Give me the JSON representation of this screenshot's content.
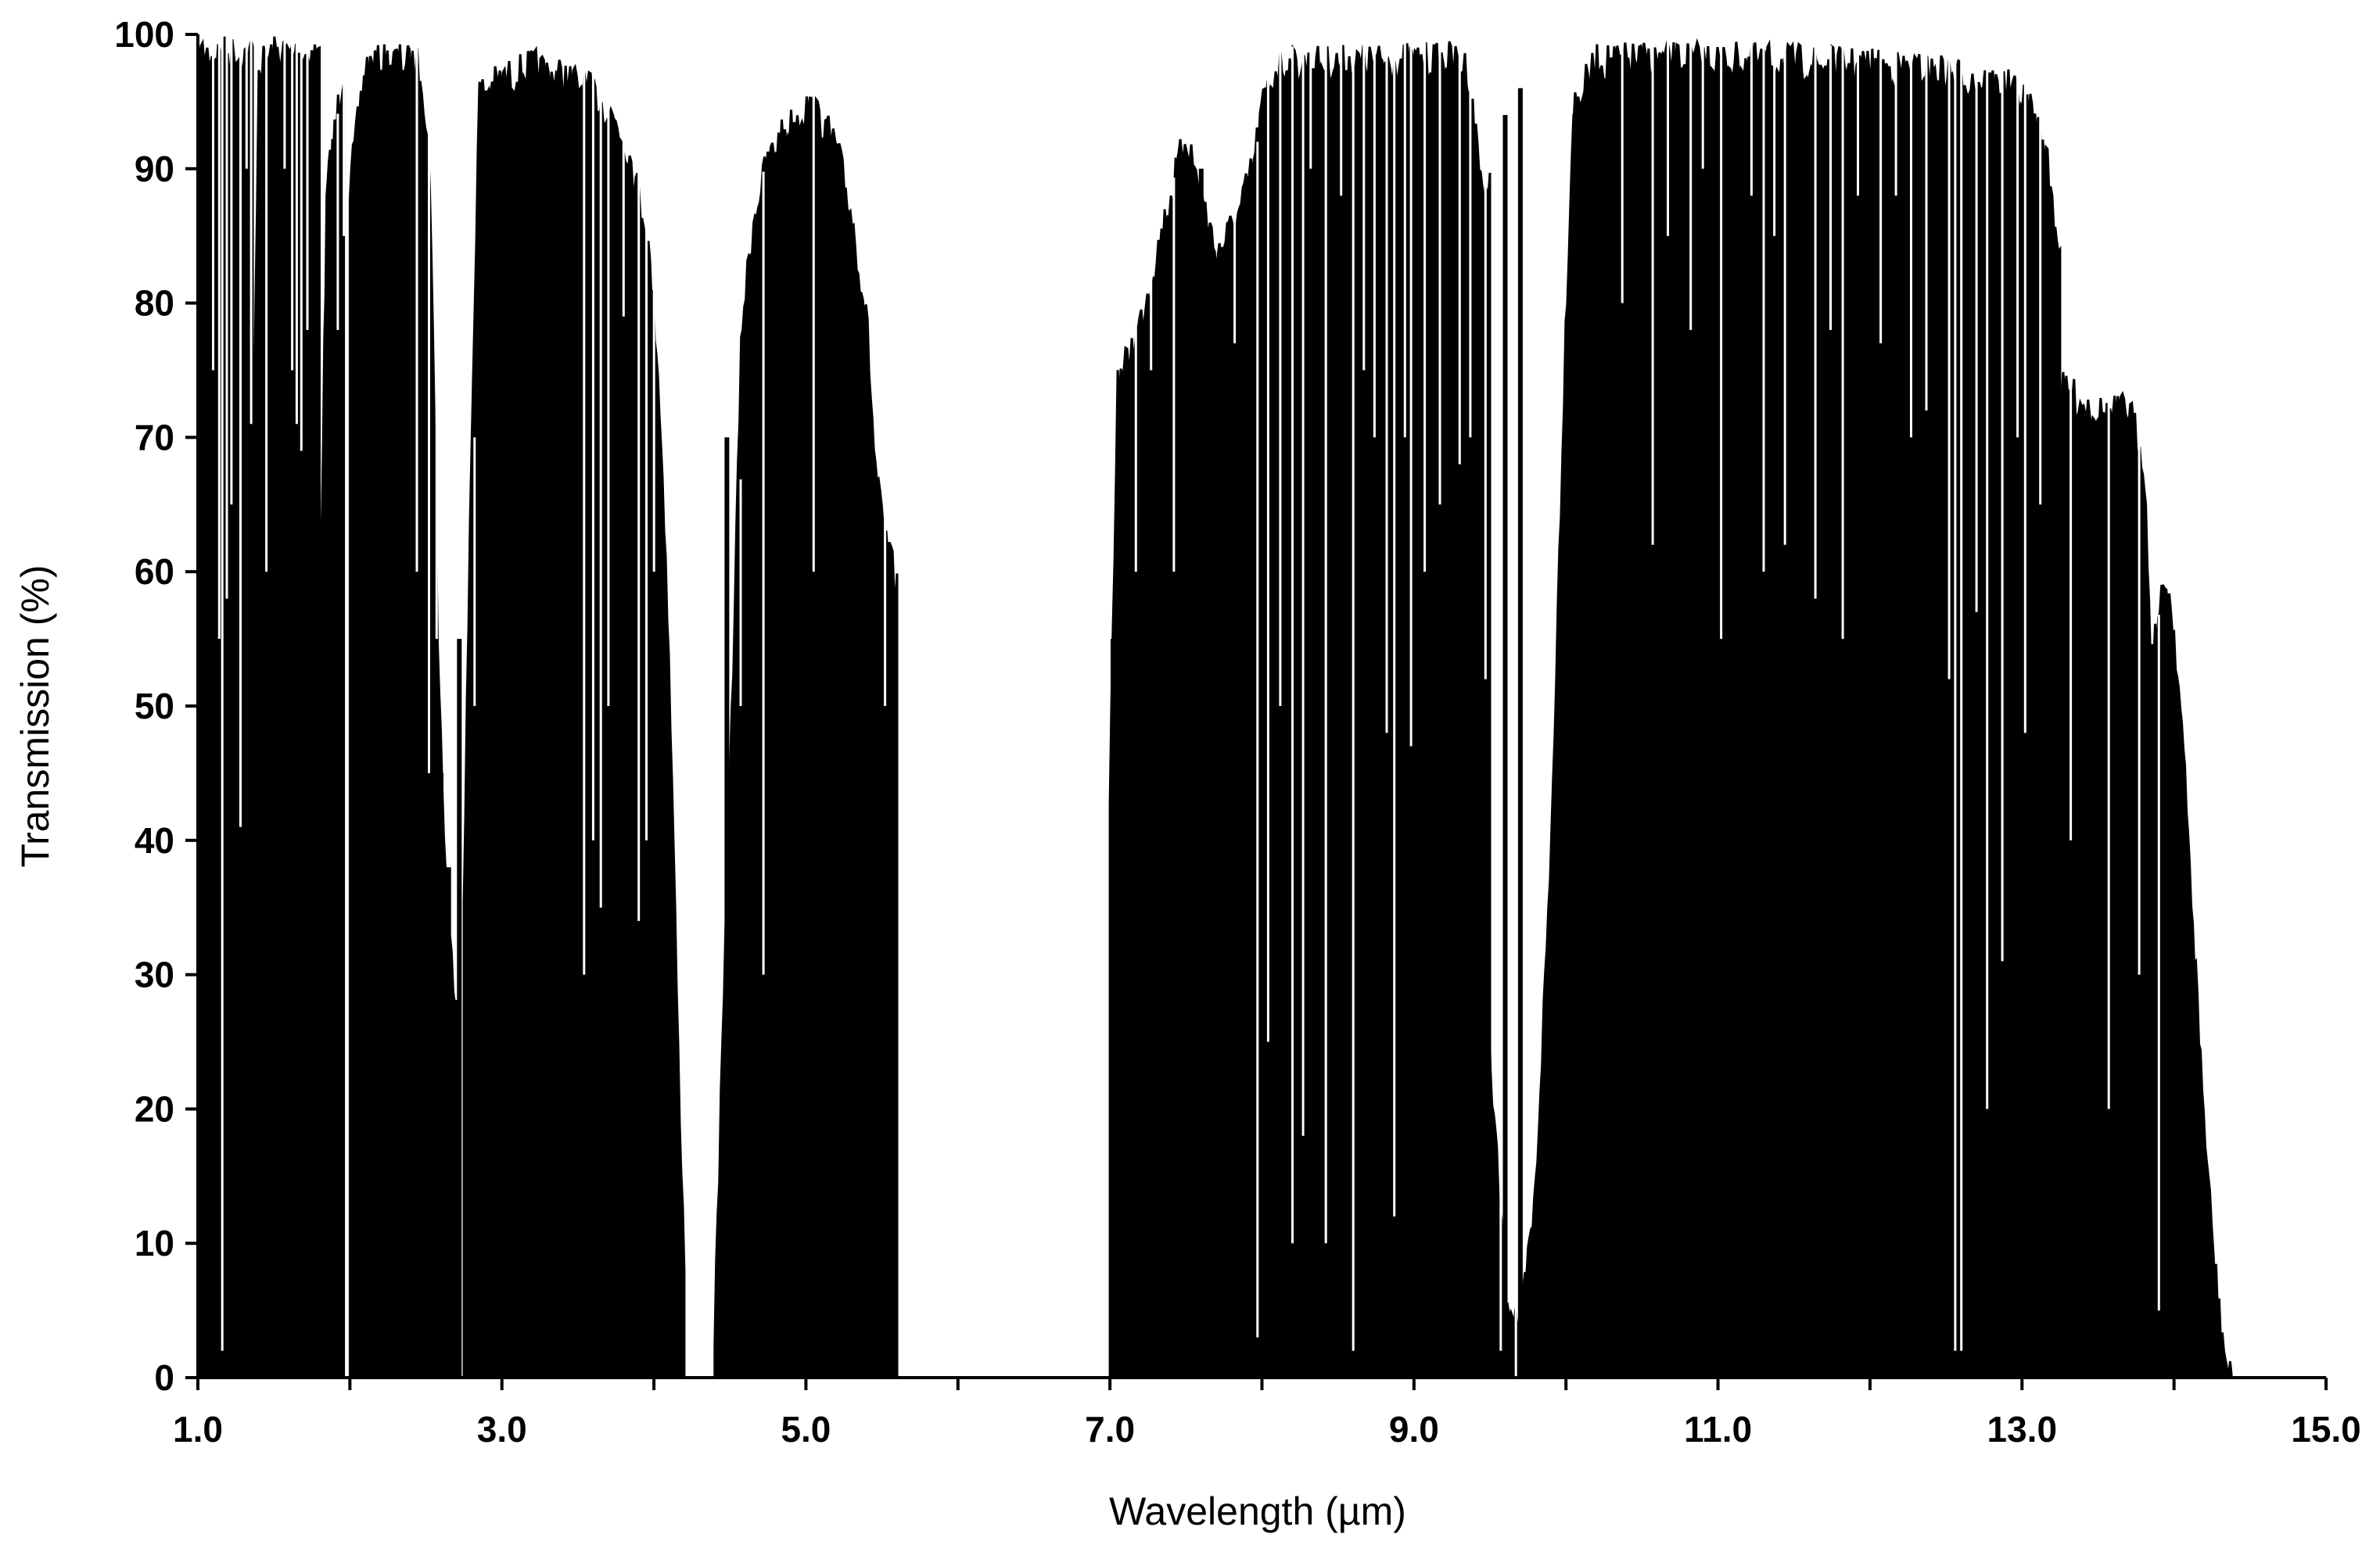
{
  "chart_data": {
    "type": "area",
    "title": "",
    "xlabel": "Wavelength (µm)",
    "ylabel": "Transmission (%)",
    "xlim": [
      1.0,
      15.0
    ],
    "ylim": [
      0,
      100
    ],
    "x_ticks": [
      1.0,
      2.0,
      3.0,
      4.0,
      5.0,
      6.0,
      7.0,
      8.0,
      9.0,
      10.0,
      11.0,
      12.0,
      13.0,
      14.0,
      15.0
    ],
    "x_tick_labels": [
      "1.0",
      "3.0",
      "5.0",
      "7.0",
      "9.0",
      "11.0",
      "13.0",
      "15.0"
    ],
    "x_tick_label_values": [
      1.0,
      3.0,
      5.0,
      7.0,
      9.0,
      11.0,
      13.0,
      15.0
    ],
    "y_ticks": [
      0,
      10,
      20,
      30,
      40,
      50,
      60,
      70,
      80,
      90,
      100
    ],
    "y_tick_labels": [
      "0",
      "10",
      "20",
      "30",
      "40",
      "50",
      "60",
      "70",
      "80",
      "90",
      "100"
    ],
    "grid": false,
    "legend": "none",
    "series": [
      {
        "color": "#000000",
        "bands": [
          {
            "range": [
              1.0,
              1.36
            ],
            "envelope": [
              [
                1.0,
                100
              ],
              [
                1.05,
                100
              ],
              [
                1.36,
                100
              ]
            ],
            "dips": [
              [
                1.08,
                75
              ],
              [
                1.12,
                55
              ],
              [
                1.14,
                2
              ],
              [
                1.17,
                58
              ],
              [
                1.2,
                65
              ],
              [
                1.26,
                41
              ],
              [
                1.3,
                90
              ],
              [
                1.33,
                71
              ]
            ]
          },
          {
            "range": [
              1.37,
              1.8
            ],
            "envelope": [
              [
                1.37,
                72
              ],
              [
                1.4,
                99
              ],
              [
                1.5,
                100
              ],
              [
                1.8,
                100
              ]
            ],
            "dips": [
              [
                1.43,
                60
              ],
              [
                1.55,
                90
              ],
              [
                1.6,
                75
              ],
              [
                1.63,
                71
              ],
              [
                1.66,
                69
              ],
              [
                1.7,
                78
              ],
              [
                1.75,
                95
              ]
            ]
          },
          {
            "range": [
              1.81,
              1.96
            ],
            "envelope": [
              [
                1.81,
                62
              ],
              [
                1.85,
                90
              ],
              [
                1.96,
                99
              ]
            ],
            "dips": [
              [
                1.9,
                78
              ],
              [
                1.94,
                85
              ]
            ]
          },
          {
            "range": [
              2.0,
              2.7
            ],
            "envelope": [
              [
                2.0,
                90
              ],
              [
                2.1,
                99
              ],
              [
                2.3,
                99.5
              ],
              [
                2.47,
                99
              ],
              [
                2.53,
                90
              ],
              [
                2.58,
                55
              ],
              [
                2.64,
                35
              ],
              [
                2.7,
                30
              ]
            ],
            "dips": [
              [
                2.42,
                60
              ],
              [
                2.5,
                45
              ],
              [
                2.55,
                55
              ],
              [
                2.6,
                45
              ],
              [
                2.65,
                38
              ]
            ]
          },
          {
            "range": [
              2.75,
              3.45
            ],
            "envelope": [
              [
                2.75,
                38
              ],
              [
                2.8,
                70
              ],
              [
                2.85,
                97
              ],
              [
                3.0,
                98
              ],
              [
                3.2,
                99
              ],
              [
                3.45,
                98
              ]
            ],
            "dips": [
              [
                2.72,
                55
              ],
              [
                2.8,
                50
              ],
              [
                3.05,
                96
              ],
              [
                3.25,
                97
              ]
            ]
          },
          {
            "range": [
              3.45,
              4.2
            ],
            "envelope": [
              [
                3.45,
                98
              ],
              [
                3.6,
                97
              ],
              [
                3.75,
                95
              ],
              [
                3.85,
                92
              ],
              [
                3.95,
                87
              ],
              [
                4.02,
                78
              ],
              [
                4.08,
                62
              ],
              [
                4.12,
                45
              ],
              [
                4.16,
                25
              ],
              [
                4.2,
                10
              ]
            ],
            "dips": [
              [
                3.52,
                30
              ],
              [
                3.58,
                40
              ],
              [
                3.63,
                35
              ],
              [
                3.68,
                50
              ],
              [
                3.78,
                79
              ],
              [
                3.88,
                34
              ],
              [
                3.93,
                40
              ],
              [
                3.98,
                60
              ]
            ]
          },
          {
            "range": [
              4.4,
              5.6
            ],
            "envelope": [
              [
                4.4,
                5
              ],
              [
                4.5,
                45
              ],
              [
                4.58,
                80
              ],
              [
                4.66,
                88
              ],
              [
                4.75,
                92
              ],
              [
                4.85,
                94
              ],
              [
                5.0,
                96
              ],
              [
                5.1,
                95
              ],
              [
                5.2,
                93
              ],
              [
                5.3,
                88
              ],
              [
                5.4,
                80
              ],
              [
                5.45,
                70
              ],
              [
                5.5,
                65
              ],
              [
                5.6,
                60
              ]
            ],
            "dips": [
              [
                4.48,
                70
              ],
              [
                4.55,
                50
              ],
              [
                4.7,
                30
              ],
              [
                5.03,
                60
              ],
              [
                5.5,
                50
              ]
            ]
          },
          {
            "range": [
              7.0,
              9.5
            ],
            "envelope": [
              [
                7.0,
                45
              ],
              [
                7.05,
                75
              ],
              [
                7.2,
                80
              ],
              [
                7.35,
                87
              ],
              [
                7.5,
                94
              ],
              [
                7.7,
                85
              ],
              [
                7.85,
                88
              ],
              [
                7.95,
                92
              ],
              [
                8.0,
                96
              ],
              [
                8.1,
                99
              ],
              [
                8.3,
                99.2
              ],
              [
                8.6,
                99.3
              ],
              [
                8.9,
                99.4
              ],
              [
                9.25,
                99.5
              ],
              [
                9.35,
                99
              ],
              [
                9.45,
                90
              ]
            ],
            "dips": [
              [
                7.02,
                55
              ],
              [
                7.08,
                73
              ],
              [
                7.15,
                60
              ],
              [
                7.25,
                75
              ],
              [
                7.4,
                60
              ],
              [
                7.6,
                90
              ],
              [
                7.8,
                77
              ],
              [
                7.95,
                3
              ],
              [
                8.02,
                25
              ],
              [
                8.1,
                50
              ],
              [
                8.18,
                10
              ],
              [
                8.25,
                18
              ],
              [
                8.3,
                90
              ],
              [
                8.4,
                10
              ],
              [
                8.5,
                88
              ],
              [
                8.58,
                2
              ],
              [
                8.65,
                75
              ],
              [
                8.72,
                70
              ],
              [
                8.8,
                48
              ],
              [
                8.85,
                12
              ],
              [
                8.92,
                70
              ],
              [
                8.96,
                47
              ],
              [
                9.05,
                60
              ],
              [
                9.15,
                65
              ],
              [
                9.28,
                68
              ],
              [
                9.35,
                70
              ],
              [
                9.45,
                52
              ]
            ]
          },
          {
            "range": [
              9.4,
              10.05
            ],
            "envelope": [
              [
                9.4,
                55
              ],
              [
                9.5,
                25
              ],
              [
                9.6,
                8
              ],
              [
                9.7,
                5
              ],
              [
                9.8,
                15
              ],
              [
                9.9,
                40
              ],
              [
                10.0,
                80
              ],
              [
                10.05,
                96
              ]
            ],
            "dips": [
              [
                9.55,
                2
              ],
              [
                9.65,
                0
              ],
              [
                9.75,
                8
              ],
              [
                9.6,
                94
              ],
              [
                9.7,
                96
              ]
            ]
          },
          {
            "range": [
              10.05,
              13.25
            ],
            "envelope": [
              [
                10.05,
                96
              ],
              [
                10.2,
                99.3
              ],
              [
                10.5,
                99.5
              ],
              [
                11.0,
                99.5
              ],
              [
                11.5,
                99.3
              ],
              [
                12.0,
                99
              ],
              [
                12.5,
                98.5
              ],
              [
                12.9,
                97.5
              ],
              [
                13.05,
                96
              ],
              [
                13.15,
                93
              ],
              [
                13.25,
                85
              ]
            ],
            "dips": [
              [
                10.35,
                80
              ],
              [
                10.55,
                62
              ],
              [
                10.65,
                85
              ],
              [
                10.8,
                78
              ],
              [
                10.88,
                90
              ],
              [
                11.0,
                55
              ],
              [
                11.1,
                95
              ],
              [
                11.2,
                88
              ],
              [
                11.28,
                60
              ],
              [
                11.35,
                85
              ],
              [
                11.42,
                62
              ],
              [
                11.5,
                97
              ],
              [
                11.62,
                58
              ],
              [
                11.72,
                78
              ],
              [
                11.8,
                55
              ],
              [
                11.9,
                88
              ],
              [
                12.05,
                77
              ],
              [
                12.15,
                88
              ],
              [
                12.25,
                70
              ],
              [
                12.35,
                72
              ],
              [
                12.5,
                52
              ],
              [
                12.54,
                2
              ],
              [
                12.58,
                2
              ],
              [
                12.68,
                57
              ],
              [
                12.75,
                20
              ],
              [
                12.85,
                31
              ],
              [
                12.95,
                70
              ],
              [
                13.0,
                48
              ],
              [
                13.1,
                65
              ]
            ]
          },
          {
            "range": [
              13.25,
              14.4
            ],
            "envelope": [
              [
                13.25,
                75
              ],
              [
                13.4,
                74
              ],
              [
                13.55,
                73
              ],
              [
                13.7,
                73.5
              ],
              [
                13.8,
                70
              ],
              [
                13.85,
                55
              ],
              [
                13.9,
                58
              ],
              [
                13.95,
                61
              ],
              [
                14.0,
                57
              ],
              [
                14.05,
                50
              ],
              [
                14.1,
                40
              ],
              [
                14.15,
                30
              ],
              [
                14.2,
                20
              ],
              [
                14.25,
                12
              ],
              [
                14.3,
                6
              ],
              [
                14.35,
                2
              ],
              [
                14.4,
                0
              ]
            ],
            "dips": [
              [
                13.3,
                40
              ],
              [
                13.55,
                20
              ],
              [
                13.75,
                30
              ],
              [
                13.88,
                5
              ]
            ]
          }
        ]
      }
    ]
  }
}
